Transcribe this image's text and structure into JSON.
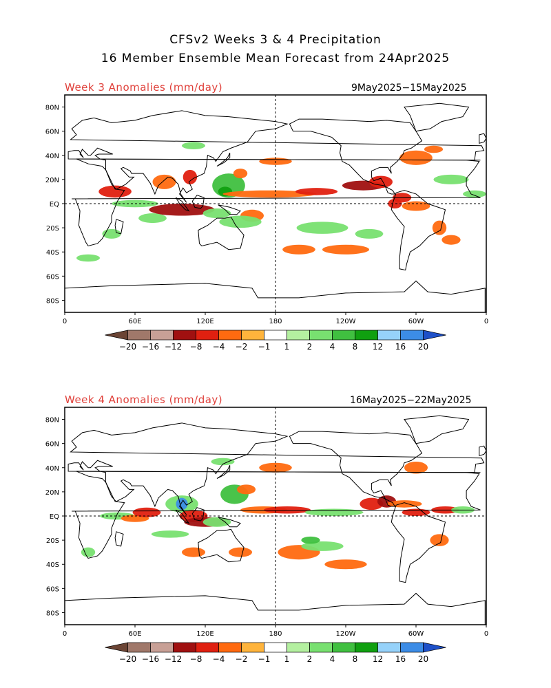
{
  "title": {
    "line1": "CFSv2 Weeks 3 & 4 Precipitation",
    "line2": "16 Member Ensemble Mean Forecast from 24Apr2025"
  },
  "panels": [
    {
      "label": "Week 3 Anomalies (mm/day)",
      "dates": "9May2025−15May2025"
    },
    {
      "label": "Week 4 Anomalies (mm/day)",
      "dates": "16May2025−22May2025"
    }
  ],
  "axes": {
    "lat_labels": [
      "80N",
      "60N",
      "40N",
      "20N",
      "EQ",
      "20S",
      "40S",
      "60S",
      "80S"
    ],
    "lon_labels": [
      "0",
      "60E",
      "120E",
      "180",
      "120W",
      "60W",
      "0"
    ]
  },
  "colorbar": {
    "labels": [
      "−20",
      "−16",
      "−12",
      "−8",
      "−4",
      "−2",
      "−1",
      "1",
      "2",
      "4",
      "8",
      "12",
      "16",
      "20"
    ],
    "colors": [
      "#6b4434",
      "#a0786a",
      "#c8a096",
      "#a01010",
      "#e02010",
      "#ff6a10",
      "#ffb43c",
      "#ffffff",
      "#b4f0a0",
      "#78e070",
      "#40c040",
      "#10a010",
      "#96d2fa",
      "#3c8ce6",
      "#1e50c8"
    ]
  }
}
